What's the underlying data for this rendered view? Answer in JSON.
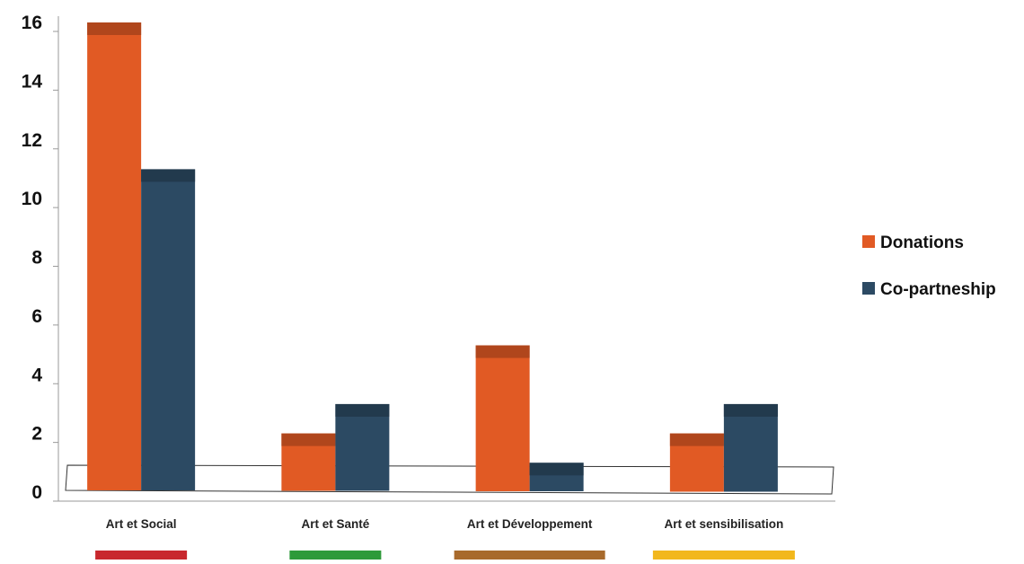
{
  "chart_data": {
    "type": "bar",
    "categories": [
      "Art et Social",
      "Art et Santé",
      "Art et Développement",
      "Art et sensibilisation"
    ],
    "category_colors": [
      "#c8272d",
      "#2e9a3a",
      "#a86a2c",
      "#f2b71c"
    ],
    "series": [
      {
        "name": "Donations",
        "color": "#e15a24",
        "values": [
          16,
          2,
          5,
          2
        ]
      },
      {
        "name": "Co-partneship",
        "color": "#2c4a63",
        "values": [
          11,
          3,
          1,
          3
        ]
      }
    ],
    "ylim": [
      0,
      16
    ],
    "yticks": [
      0,
      2,
      4,
      6,
      8,
      10,
      12,
      14,
      16
    ],
    "legend_position": "right",
    "grid": false
  }
}
